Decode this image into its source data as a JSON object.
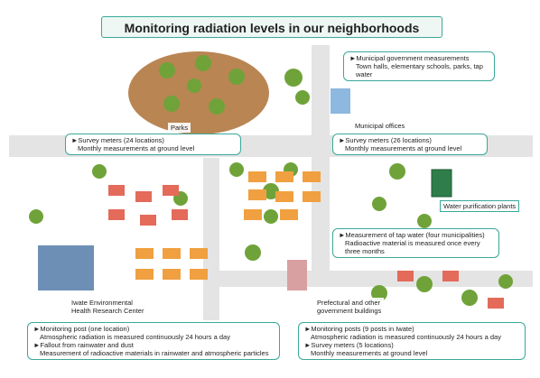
{
  "title": "Monitoring radiation levels in our neighborhoods",
  "labels": {
    "parks": "Parks",
    "municipal_offices": "Municipal offices",
    "water_plants": "Water purification plants",
    "iwate_center": [
      "Iwate Environmental",
      "Health Research Center"
    ],
    "prefectural": [
      "Prefectural and other",
      "government buildings"
    ]
  },
  "boxes": {
    "parks": [
      "►Survey meters (24 locations)",
      "Monthly measurements at ground level"
    ],
    "municipal": [
      "►Municipal government measurements",
      "Town halls, elementary schools, parks, tap water"
    ],
    "municipal_survey": [
      "►Survey meters (26 locations)",
      "Monthly measurements at ground level"
    ],
    "tap_water": [
      "►Measurement of tap water (four municipalities)",
      "Radioactive material is measured once every three months"
    ],
    "iwate": [
      "►Monitoring post (one location)",
      "Atmospheric radiation is measured continuously 24 hours a day",
      "►Fallout from rainwater and dust",
      "Measurement of radioactive materials in rainwater and atmospheric particles"
    ],
    "prefectural": [
      "►Monitoring posts (9 posts in Iwate)",
      "Atmospheric radiation is measured continuously 24 hours a day",
      "►Survey meters (5 locations)",
      "Monthly measurements at ground level"
    ]
  }
}
